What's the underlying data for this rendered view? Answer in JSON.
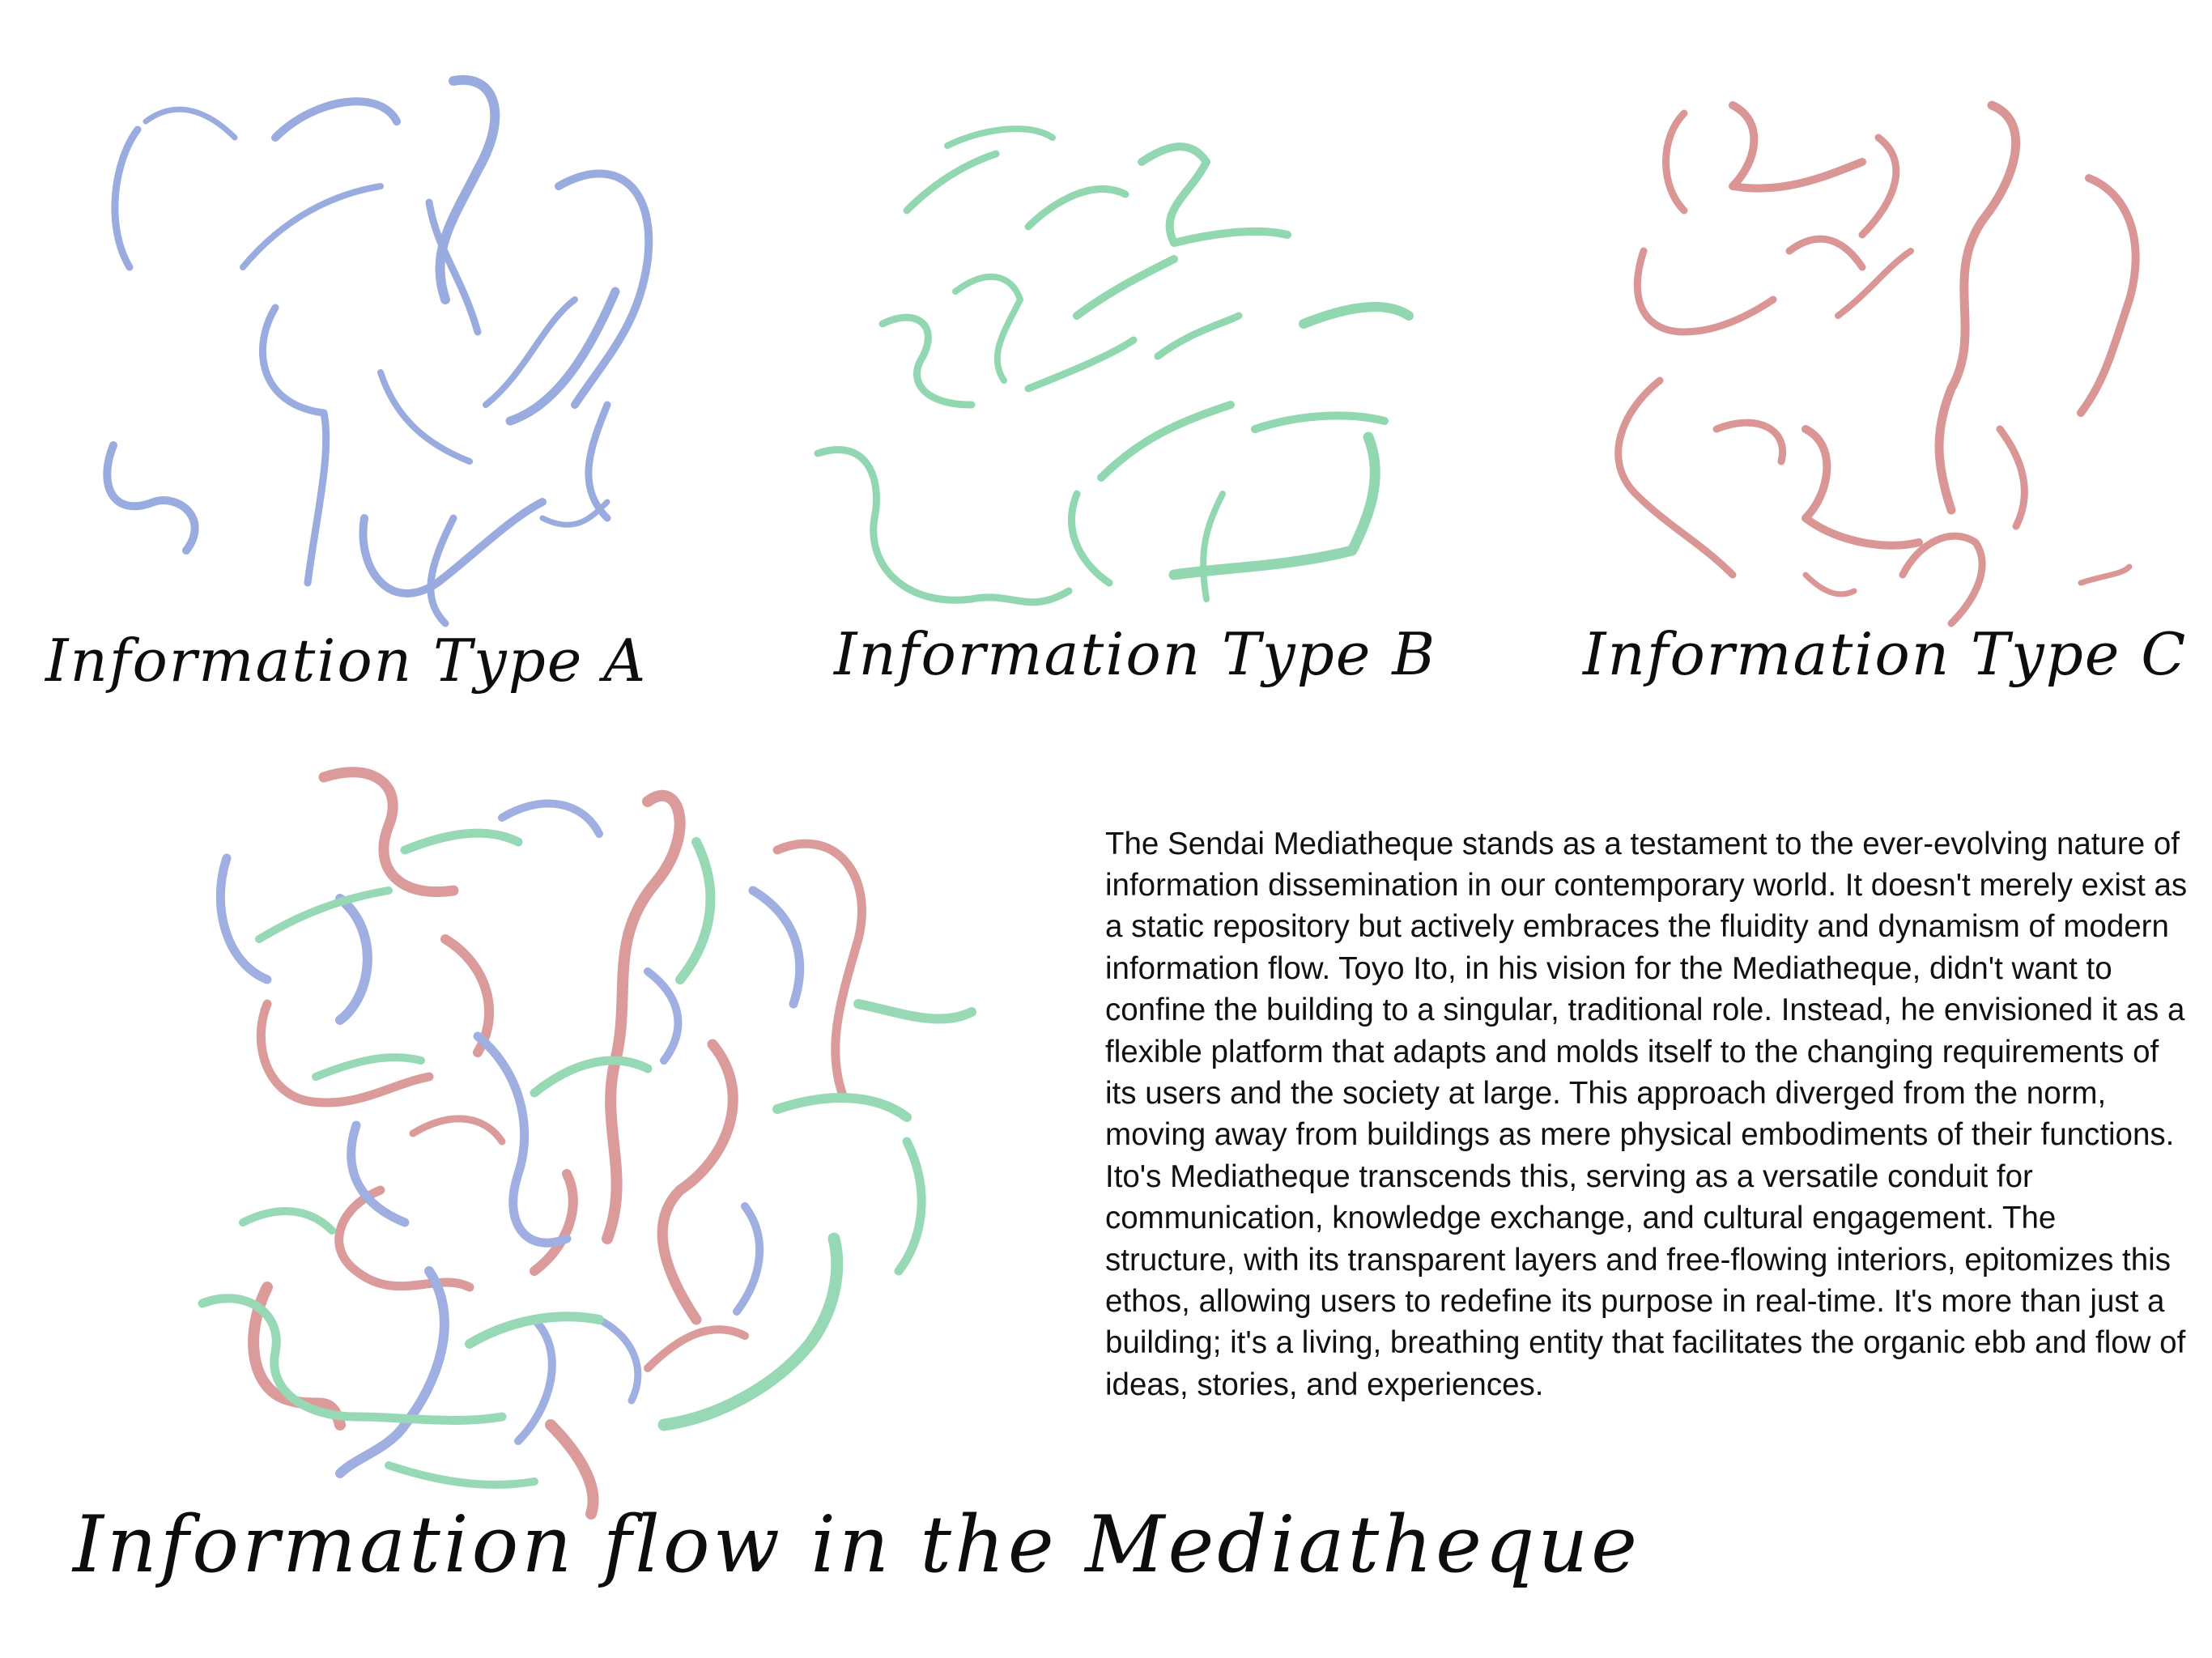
{
  "labels": {
    "type_a": "Information Type A",
    "type_b": "Information Type B",
    "type_c": "Information Type C",
    "flow": "Information flow in the Mediatheque"
  },
  "colors": {
    "type_a": "#8fa2dc",
    "type_b": "#86d3a8",
    "type_c": "#d68a8a",
    "ink": "#0d0d0d",
    "text": "#111111"
  },
  "description": "The Sendai Mediatheque stands as a testament to the ever-evolving nature of information dissemination in our contemporary world. It doesn't merely exist as a static repository but actively embraces the fluidity and dynamism of modern information flow. Toyo Ito, in his vision for the Mediatheque, didn't want to confine the building to a singular, traditional role. Instead, he envisioned it as a flexible platform that adapts and molds itself to the changing requirements of its users and the society at large. This approach diverged from the norm, moving away from buildings as mere physical embodiments of their functions. Ito's Mediatheque transcends this, serving as a versatile conduit for communication, knowledge exchange, and cultural engagement. The structure, with its transparent layers and free-flowing interiors, epitomizes this ethos, allowing users to redefine its purpose in real-time. It's more than just a building; it's a living, breathing entity that facilitates the organic ebb and flow of ideas, stories, and experiences."
}
